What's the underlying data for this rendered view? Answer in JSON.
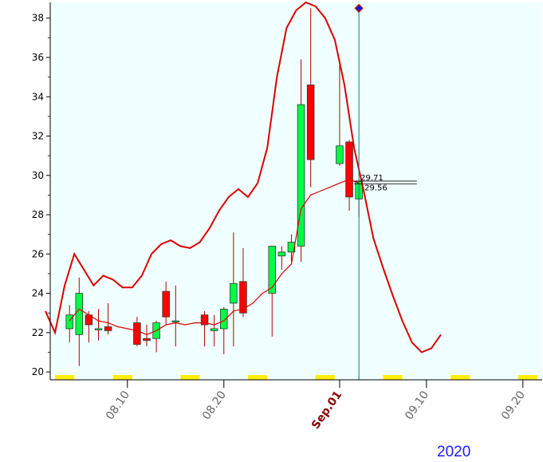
{
  "chart_data": {
    "type": "candlestick",
    "year_label": "2020",
    "x_tick_labels": [
      {
        "label": "08.10",
        "day": 10,
        "major": false
      },
      {
        "label": "08.20",
        "day": 20,
        "major": false
      },
      {
        "label": "Sep.01",
        "day": 32,
        "major": true
      },
      {
        "label": "09.10",
        "day": 41,
        "major": false
      },
      {
        "label": "09.20",
        "day": 51,
        "major": false
      }
    ],
    "ylim": [
      19.6,
      38.8
    ],
    "y_ticks": [
      20,
      22,
      24,
      26,
      28,
      30,
      32,
      34,
      36,
      38
    ],
    "xlim": [
      2,
      53
    ],
    "background_color": "#f0ffff",
    "up_color": "#00ff44",
    "down_color": "#ff0000",
    "band_color": "#dd0000",
    "ma_color": "#dd0000",
    "cursor_color": "#008080",
    "marker_color": "#1a1acc",
    "weekend_color": "#ffee00",
    "last_price_labels": [
      "29.71",
      "29.56"
    ],
    "last_price_values": [
      29.71,
      29.56
    ],
    "candles": [
      {
        "day": 4,
        "open": 22.2,
        "high": 23.4,
        "low": 21.5,
        "close": 22.9
      },
      {
        "day": 5,
        "open": 21.9,
        "high": 24.8,
        "low": 20.3,
        "close": 24.0
      },
      {
        "day": 6,
        "open": 22.9,
        "high": 23.1,
        "low": 21.5,
        "close": 22.4
      },
      {
        "day": 7,
        "open": 22.2,
        "high": 23.2,
        "low": 21.6,
        "close": 22.2
      },
      {
        "day": 8,
        "open": 22.3,
        "high": 23.5,
        "low": 21.9,
        "close": 22.1
      },
      {
        "day": 11,
        "open": 22.5,
        "high": 22.8,
        "low": 21.3,
        "close": 21.4
      },
      {
        "day": 12,
        "open": 21.7,
        "high": 22.4,
        "low": 21.3,
        "close": 21.6
      },
      {
        "day": 13,
        "open": 21.7,
        "high": 22.6,
        "low": 21.0,
        "close": 22.5
      },
      {
        "day": 14,
        "open": 24.1,
        "high": 24.6,
        "low": 22.4,
        "close": 22.8
      },
      {
        "day": 15,
        "open": 22.6,
        "high": 24.4,
        "low": 21.3,
        "close": 22.6
      },
      {
        "day": 18,
        "open": 22.9,
        "high": 23.1,
        "low": 21.3,
        "close": 22.4
      },
      {
        "day": 19,
        "open": 22.1,
        "high": 22.9,
        "low": 21.3,
        "close": 22.2
      },
      {
        "day": 20,
        "open": 22.2,
        "high": 23.3,
        "low": 20.9,
        "close": 23.2
      },
      {
        "day": 21,
        "open": 23.5,
        "high": 27.1,
        "low": 21.3,
        "close": 24.5
      },
      {
        "day": 22,
        "open": 24.6,
        "high": 26.3,
        "low": 22.8,
        "close": 23.0
      },
      {
        "day": 25,
        "open": 24.0,
        "high": 26.4,
        "low": 21.8,
        "close": 26.4
      },
      {
        "day": 26,
        "open": 25.9,
        "high": 26.4,
        "low": 25.2,
        "close": 26.1
      },
      {
        "day": 27,
        "open": 26.1,
        "high": 27.0,
        "low": 25.6,
        "close": 26.6
      },
      {
        "day": 28,
        "open": 26.4,
        "high": 35.9,
        "low": 25.6,
        "close": 33.6
      },
      {
        "day": 29,
        "open": 34.6,
        "high": 38.5,
        "low": 29.4,
        "close": 30.8
      },
      {
        "day": 32,
        "open": 30.6,
        "high": 35.9,
        "low": 30.5,
        "close": 31.5
      },
      {
        "day": 33,
        "open": 31.7,
        "high": 31.8,
        "low": 28.2,
        "close": 28.9
      },
      {
        "day": 34,
        "open": 28.8,
        "high": 29.8,
        "low": 27.9,
        "close": 29.7
      }
    ],
    "upper_band": [
      [
        1.5,
        23.1
      ],
      [
        2.5,
        22.0
      ],
      [
        3.5,
        24.4
      ],
      [
        4.5,
        26.0
      ],
      [
        5.5,
        25.2
      ],
      [
        6.5,
        24.4
      ],
      [
        7.5,
        24.9
      ],
      [
        8.5,
        24.7
      ],
      [
        9.5,
        24.3
      ],
      [
        10.5,
        24.3
      ],
      [
        11.5,
        24.9
      ],
      [
        12.5,
        26.0
      ],
      [
        13.5,
        26.5
      ],
      [
        14.5,
        26.7
      ],
      [
        15.5,
        26.4
      ],
      [
        16.5,
        26.3
      ],
      [
        17.5,
        26.6
      ],
      [
        18.5,
        27.3
      ],
      [
        19.5,
        28.2
      ],
      [
        20.5,
        28.9
      ],
      [
        21.5,
        29.3
      ],
      [
        22.5,
        28.9
      ],
      [
        23.5,
        29.6
      ],
      [
        24.5,
        31.4
      ],
      [
        25.5,
        35.0
      ],
      [
        26.5,
        37.5
      ],
      [
        27.5,
        38.4
      ],
      [
        28.5,
        38.8
      ],
      [
        29.5,
        38.6
      ],
      [
        30.5,
        38.0
      ],
      [
        31.5,
        36.9
      ],
      [
        32.5,
        34.6
      ],
      [
        33.5,
        31.4
      ],
      [
        34.5,
        29.2
      ],
      [
        35.5,
        26.8
      ],
      [
        36.5,
        25.3
      ],
      [
        37.5,
        23.9
      ],
      [
        38.5,
        22.6
      ],
      [
        39.5,
        21.5
      ],
      [
        40.5,
        21.0
      ],
      [
        41.5,
        21.2
      ],
      [
        42.5,
        21.9
      ]
    ],
    "moving_average": [
      [
        4.0,
        22.6
      ],
      [
        5.0,
        23.2
      ],
      [
        6.0,
        22.9
      ],
      [
        7.0,
        22.6
      ],
      [
        8.0,
        22.5
      ],
      [
        9.0,
        22.3
      ],
      [
        10.0,
        22.2
      ],
      [
        11.0,
        22.1
      ],
      [
        12.0,
        21.9
      ],
      [
        13.0,
        22.1
      ],
      [
        14.0,
        22.4
      ],
      [
        15.0,
        22.5
      ],
      [
        16.0,
        22.4
      ],
      [
        17.0,
        22.5
      ],
      [
        18.0,
        22.5
      ],
      [
        19.0,
        22.4
      ],
      [
        20.0,
        22.6
      ],
      [
        21.0,
        23.1
      ],
      [
        22.0,
        23.2
      ],
      [
        23.0,
        23.5
      ],
      [
        24.0,
        24.0
      ],
      [
        25.0,
        24.3
      ],
      [
        26.0,
        25.0
      ],
      [
        27.0,
        25.5
      ],
      [
        28.0,
        28.3
      ],
      [
        29.0,
        29.0
      ],
      [
        30.0,
        29.2
      ],
      [
        31.0,
        29.4
      ],
      [
        32.0,
        29.6
      ],
      [
        33.0,
        29.8
      ],
      [
        34.0,
        29.6
      ]
    ],
    "cursor_day": 34,
    "marker_value": 38.5,
    "weekend_days": [
      3,
      4,
      9,
      10,
      16,
      17,
      23,
      24,
      30,
      31,
      37,
      38,
      44,
      45,
      51,
      52
    ]
  }
}
